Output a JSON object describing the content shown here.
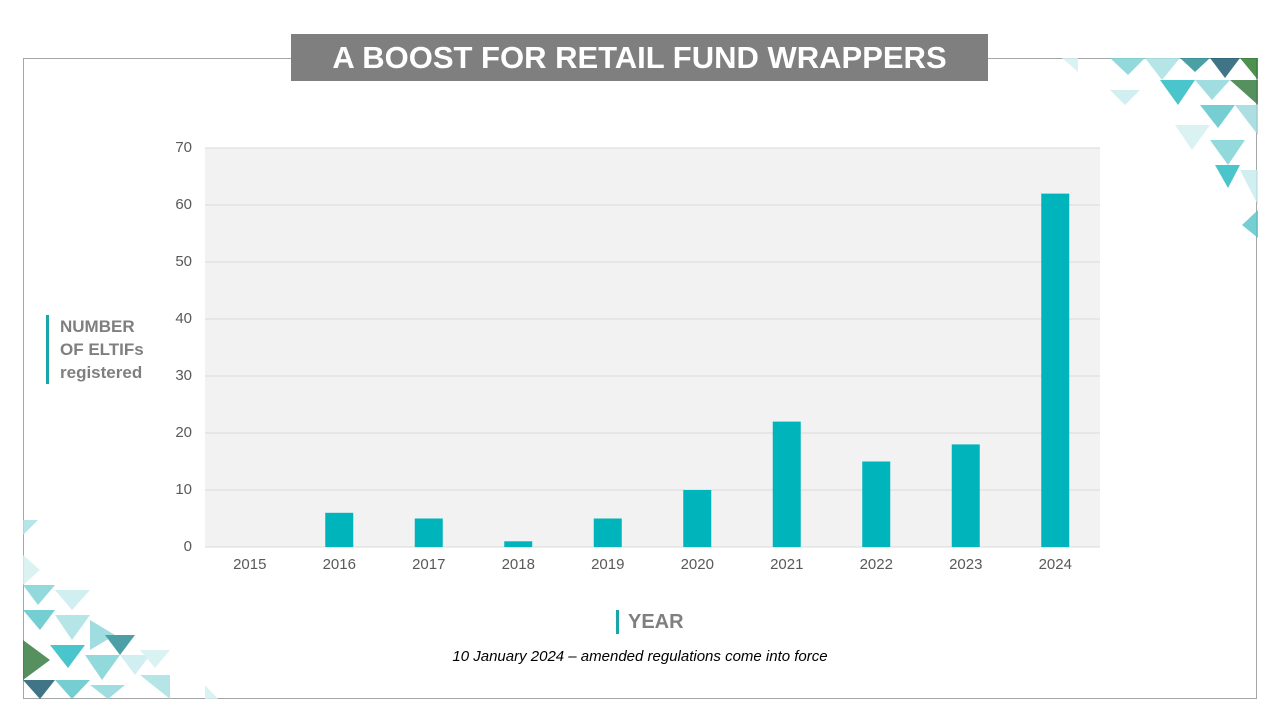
{
  "chart_data": {
    "type": "bar",
    "title": "A BOOST FOR RETAIL FUND WRAPPERS",
    "y_label": "NUMBER OF ELTIFs registered",
    "x_label": "YEAR",
    "annotation": "10 January 2024 – amended regulations come into force",
    "categories": [
      "2015",
      "2016",
      "2017",
      "2018",
      "2019",
      "2020",
      "2021",
      "2022",
      "2023",
      "2024"
    ],
    "values": [
      0,
      6,
      5,
      1,
      5,
      10,
      22,
      15,
      18,
      62
    ],
    "color": "#00b4bc",
    "ylim": [
      0,
      70
    ],
    "yticks": [
      0,
      10,
      20,
      30,
      40,
      50,
      60,
      70
    ],
    "grid": true
  }
}
